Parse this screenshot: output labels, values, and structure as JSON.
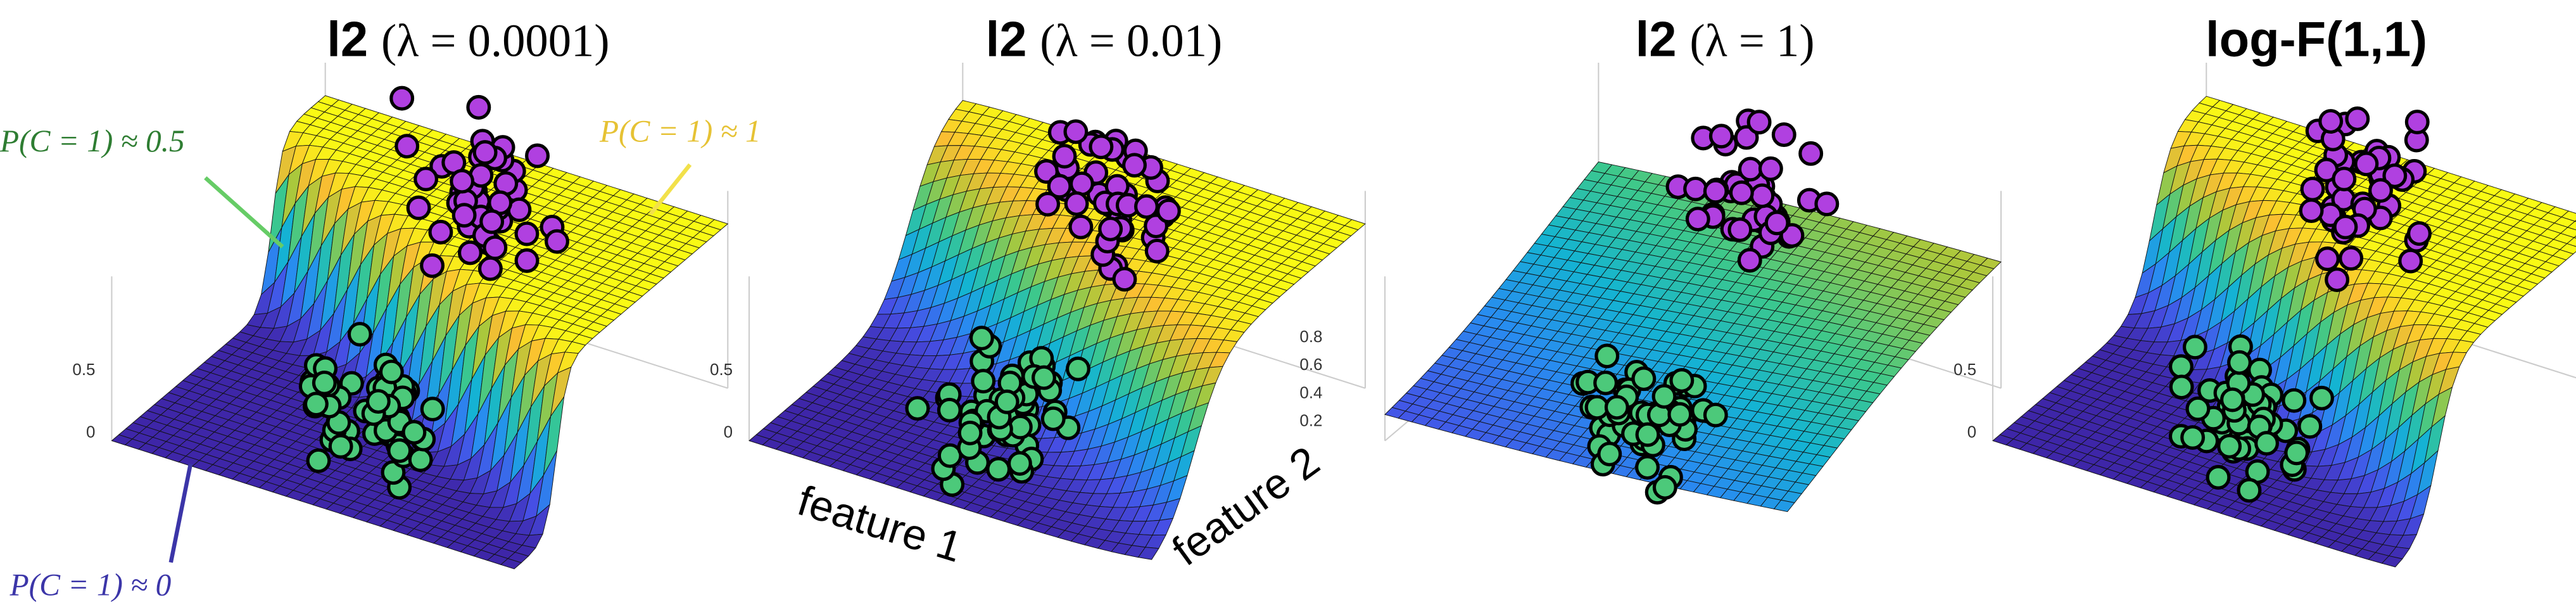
{
  "panels": [
    {
      "title": "l2",
      "param": "(λ = 0.0001)",
      "ticks": [
        "0",
        "0.5"
      ]
    },
    {
      "title": "l2",
      "param": "(λ = 0.01)",
      "ticks": [
        "0",
        "0.5"
      ]
    },
    {
      "title": "l2",
      "param": "(λ = 1)",
      "ticks": [
        "0.2",
        "0.4",
        "0.6",
        "0.8"
      ]
    },
    {
      "title": "log-F(1,1)",
      "ticks": [
        "0",
        "0.5"
      ]
    }
  ],
  "annotations": {
    "half": "P(C = 1) ≈ 0.5",
    "one": "P(C = 1) ≈ 1",
    "zero": "P(C = 1) ≈ 0"
  },
  "axis_labels": {
    "x": "feature 1",
    "y": "feature 2"
  }
}
